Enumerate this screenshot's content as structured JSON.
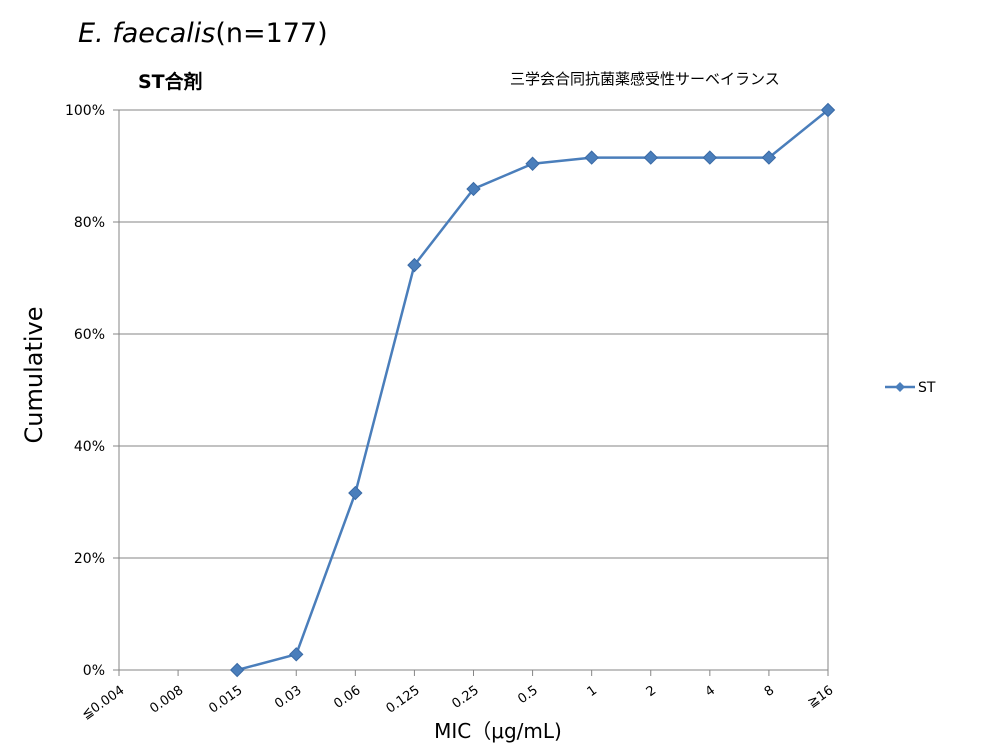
{
  "title": {
    "italic_part": "E. faecalis",
    "plain_part": "(n=177)"
  },
  "chart_data": {
    "type": "line",
    "subtitle": "ST合剤",
    "source_label": "三学会合同抗菌薬感受性サーベイランス",
    "xlabel": "MIC（μg/mL)",
    "ylabel": "Cumulative",
    "categories": [
      "≦0.004",
      "0.008",
      "0.015",
      "0.03",
      "0.06",
      "0.125",
      "0.25",
      "0.5",
      "1",
      "2",
      "4",
      "8",
      "≧16"
    ],
    "series": [
      {
        "name": "ST",
        "color": "#4a7ebb",
        "values": [
          null,
          null,
          0,
          2.8,
          31.6,
          72.3,
          85.9,
          90.4,
          91.5,
          91.5,
          91.5,
          91.5,
          100
        ]
      }
    ],
    "ylim": [
      0,
      100
    ],
    "yticks": [
      0,
      20,
      40,
      60,
      80,
      100
    ],
    "ytick_labels": [
      "0%",
      "20%",
      "40%",
      "60%",
      "80%",
      "100%"
    ],
    "grid": "horizontal",
    "legend_position": "right",
    "marker": "diamond"
  }
}
